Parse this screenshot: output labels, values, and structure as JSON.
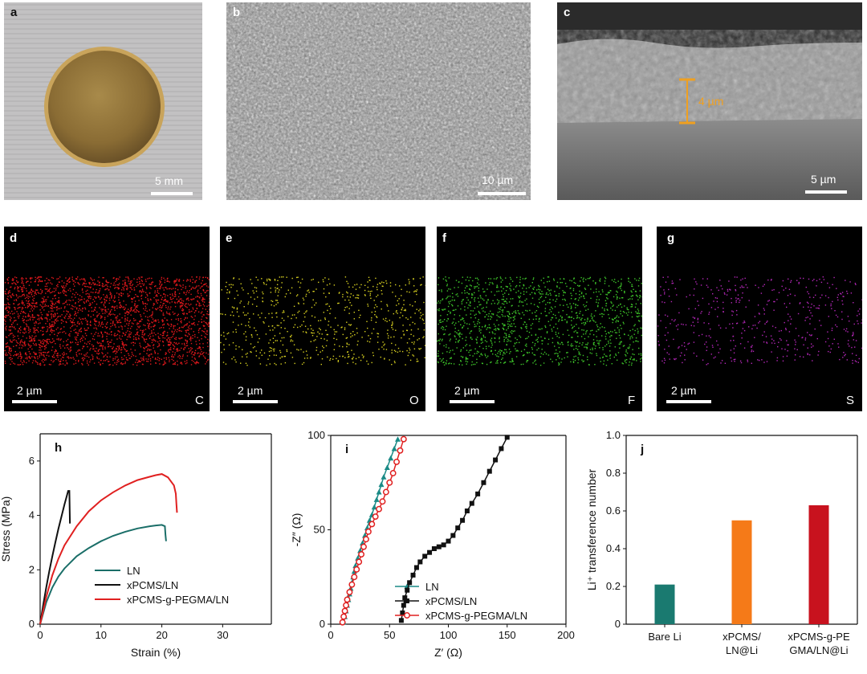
{
  "panels_top": [
    {
      "label": "a",
      "scale": "5 mm"
    },
    {
      "label": "b",
      "scale": "10 µm"
    },
    {
      "label": "c",
      "scale": "5 µm",
      "thickness": "4 µm"
    }
  ],
  "panels_eds": [
    {
      "label": "d",
      "element": "C",
      "scale": "2 µm",
      "color": "#e0181c"
    },
    {
      "label": "e",
      "element": "O",
      "scale": "2 µm",
      "color": "#d8d020"
    },
    {
      "label": "f",
      "element": "F",
      "scale": "2 µm",
      "color": "#3ec62a"
    },
    {
      "label": "g",
      "element": "S",
      "scale": "2 µm",
      "color": "#b427b8"
    }
  ],
  "chart_data": [
    {
      "panel": "h",
      "type": "line",
      "xlabel": "Strain (%)",
      "ylabel": "Stress (MPa)",
      "xlim": [
        0,
        38
      ],
      "ylim": [
        0,
        7
      ],
      "xticks": [
        0,
        10,
        20,
        30
      ],
      "yticks": [
        0,
        2,
        4,
        6
      ],
      "series": [
        {
          "name": "LN",
          "color": "#1a6e68",
          "x": [
            0,
            1,
            2,
            3,
            4,
            6,
            8,
            10,
            12,
            14,
            16,
            18,
            19,
            20,
            20.5,
            20.6,
            20.7
          ],
          "y": [
            0,
            0.8,
            1.35,
            1.75,
            2.05,
            2.5,
            2.8,
            3.05,
            3.25,
            3.4,
            3.52,
            3.6,
            3.63,
            3.65,
            3.6,
            3.3,
            3.05
          ]
        },
        {
          "name": "xPCMS/LN",
          "color": "#111111",
          "x": [
            0,
            0.5,
            1,
            1.5,
            2,
            2.5,
            3,
            3.5,
            4,
            4.3,
            4.6,
            4.8,
            4.85,
            4.9
          ],
          "y": [
            0,
            0.7,
            1.35,
            1.95,
            2.5,
            3.0,
            3.5,
            3.95,
            4.4,
            4.65,
            4.9,
            4.9,
            4.2,
            3.7
          ]
        },
        {
          "name": "xPCMS-g-PEGMA/LN",
          "color": "#e02020",
          "x": [
            0,
            1,
            2,
            3,
            4,
            6,
            8,
            10,
            12,
            14,
            16,
            18,
            19,
            20,
            21,
            22,
            22.3,
            22.4,
            22.5
          ],
          "y": [
            0,
            1.0,
            1.8,
            2.4,
            2.9,
            3.6,
            4.15,
            4.55,
            4.85,
            5.1,
            5.3,
            5.42,
            5.48,
            5.52,
            5.4,
            5.1,
            4.8,
            4.4,
            4.1
          ]
        }
      ]
    },
    {
      "panel": "i",
      "type": "scatter",
      "xlabel": "Z′ (Ω)",
      "ylabel": "-Z″ (Ω)",
      "xlim": [
        0,
        200
      ],
      "ylim": [
        0,
        100
      ],
      "xticks": [
        0,
        50,
        100,
        150,
        200
      ],
      "yticks": [
        0,
        50,
        100
      ],
      "series": [
        {
          "name": "LN",
          "color": "#1a8a86",
          "marker": "triangle",
          "x": [
            11,
            12,
            13,
            14,
            15,
            16,
            17,
            18,
            19,
            20,
            21,
            23,
            25,
            27,
            29,
            31,
            33,
            35,
            37,
            39,
            41,
            43,
            45,
            48,
            51,
            54,
            57
          ],
          "y": [
            1,
            4,
            7,
            10,
            13,
            16,
            19,
            22,
            25,
            28,
            31,
            35,
            39,
            43,
            47,
            51,
            55,
            58,
            62,
            66,
            70,
            74,
            78,
            83,
            88,
            93,
            98
          ]
        },
        {
          "name": "xPCMS/LN",
          "color": "#111111",
          "marker": "square",
          "x": [
            60,
            61,
            62,
            63,
            65,
            67,
            70,
            73,
            76,
            80,
            84,
            88,
            92,
            96,
            100,
            104,
            108,
            112,
            116,
            120,
            125,
            130,
            135,
            140,
            145,
            150
          ],
          "y": [
            2,
            6,
            10,
            14,
            18,
            22,
            26,
            30,
            33,
            36,
            38,
            40,
            41,
            42,
            44,
            47,
            51,
            55,
            60,
            64,
            69,
            75,
            81,
            87,
            93,
            99
          ]
        },
        {
          "name": "xPCMS-g-PEGMA/LN",
          "color": "#e02020",
          "marker": "circle",
          "x": [
            10,
            11,
            12,
            13,
            14,
            16,
            18,
            20,
            22,
            24,
            26,
            28,
            30,
            32,
            35,
            38,
            41,
            44,
            47,
            50,
            53,
            56,
            59,
            62
          ],
          "y": [
            1,
            4,
            7,
            10,
            13,
            17,
            21,
            25,
            29,
            33,
            37,
            41,
            45,
            49,
            53,
            57,
            61,
            65,
            70,
            75,
            80,
            86,
            92,
            98
          ]
        }
      ]
    },
    {
      "panel": "j",
      "type": "bar",
      "ylabel": "Li⁺ transference number",
      "ylim": [
        0,
        1.0
      ],
      "yticks": [
        "0",
        "0.2",
        "0.4",
        "0.6",
        "0.8",
        "1.0"
      ],
      "categories": [
        [
          "Bare Li"
        ],
        [
          "xPCMS/",
          "LN@Li"
        ],
        [
          "xPCMS-g-PE",
          "GMA/LN@Li"
        ]
      ],
      "values": [
        0.21,
        0.55,
        0.63
      ],
      "colors": [
        "#1a7a70",
        "#f57a18",
        "#c8121e"
      ]
    }
  ]
}
